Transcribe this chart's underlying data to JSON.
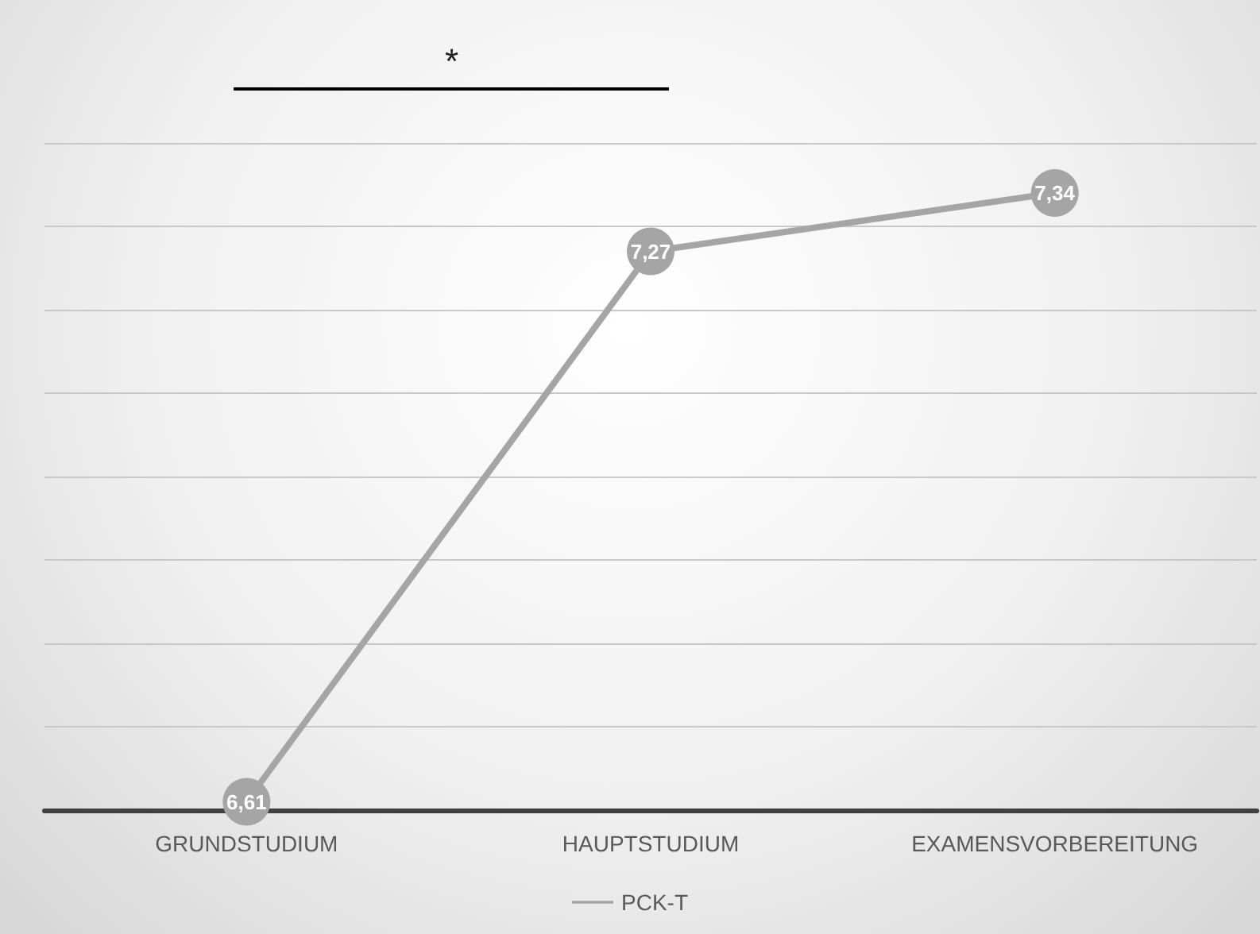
{
  "chart_data": {
    "type": "line",
    "categories": [
      "GRUNDSTUDIUM",
      "HAUPTSTUDIUM",
      "EXAMENSVORBEREITUNG"
    ],
    "series": [
      {
        "name": "PCK-T",
        "color": "#a5a5a5",
        "values": [
          6.61,
          7.27,
          7.34
        ],
        "value_labels": [
          "6,61",
          "7,27",
          "7,34"
        ]
      }
    ],
    "tick_labels": "x",
    "grid": "y",
    "legend": "bottom",
    "marker": "circle",
    "annotations": [
      "*"
    ]
  }
}
